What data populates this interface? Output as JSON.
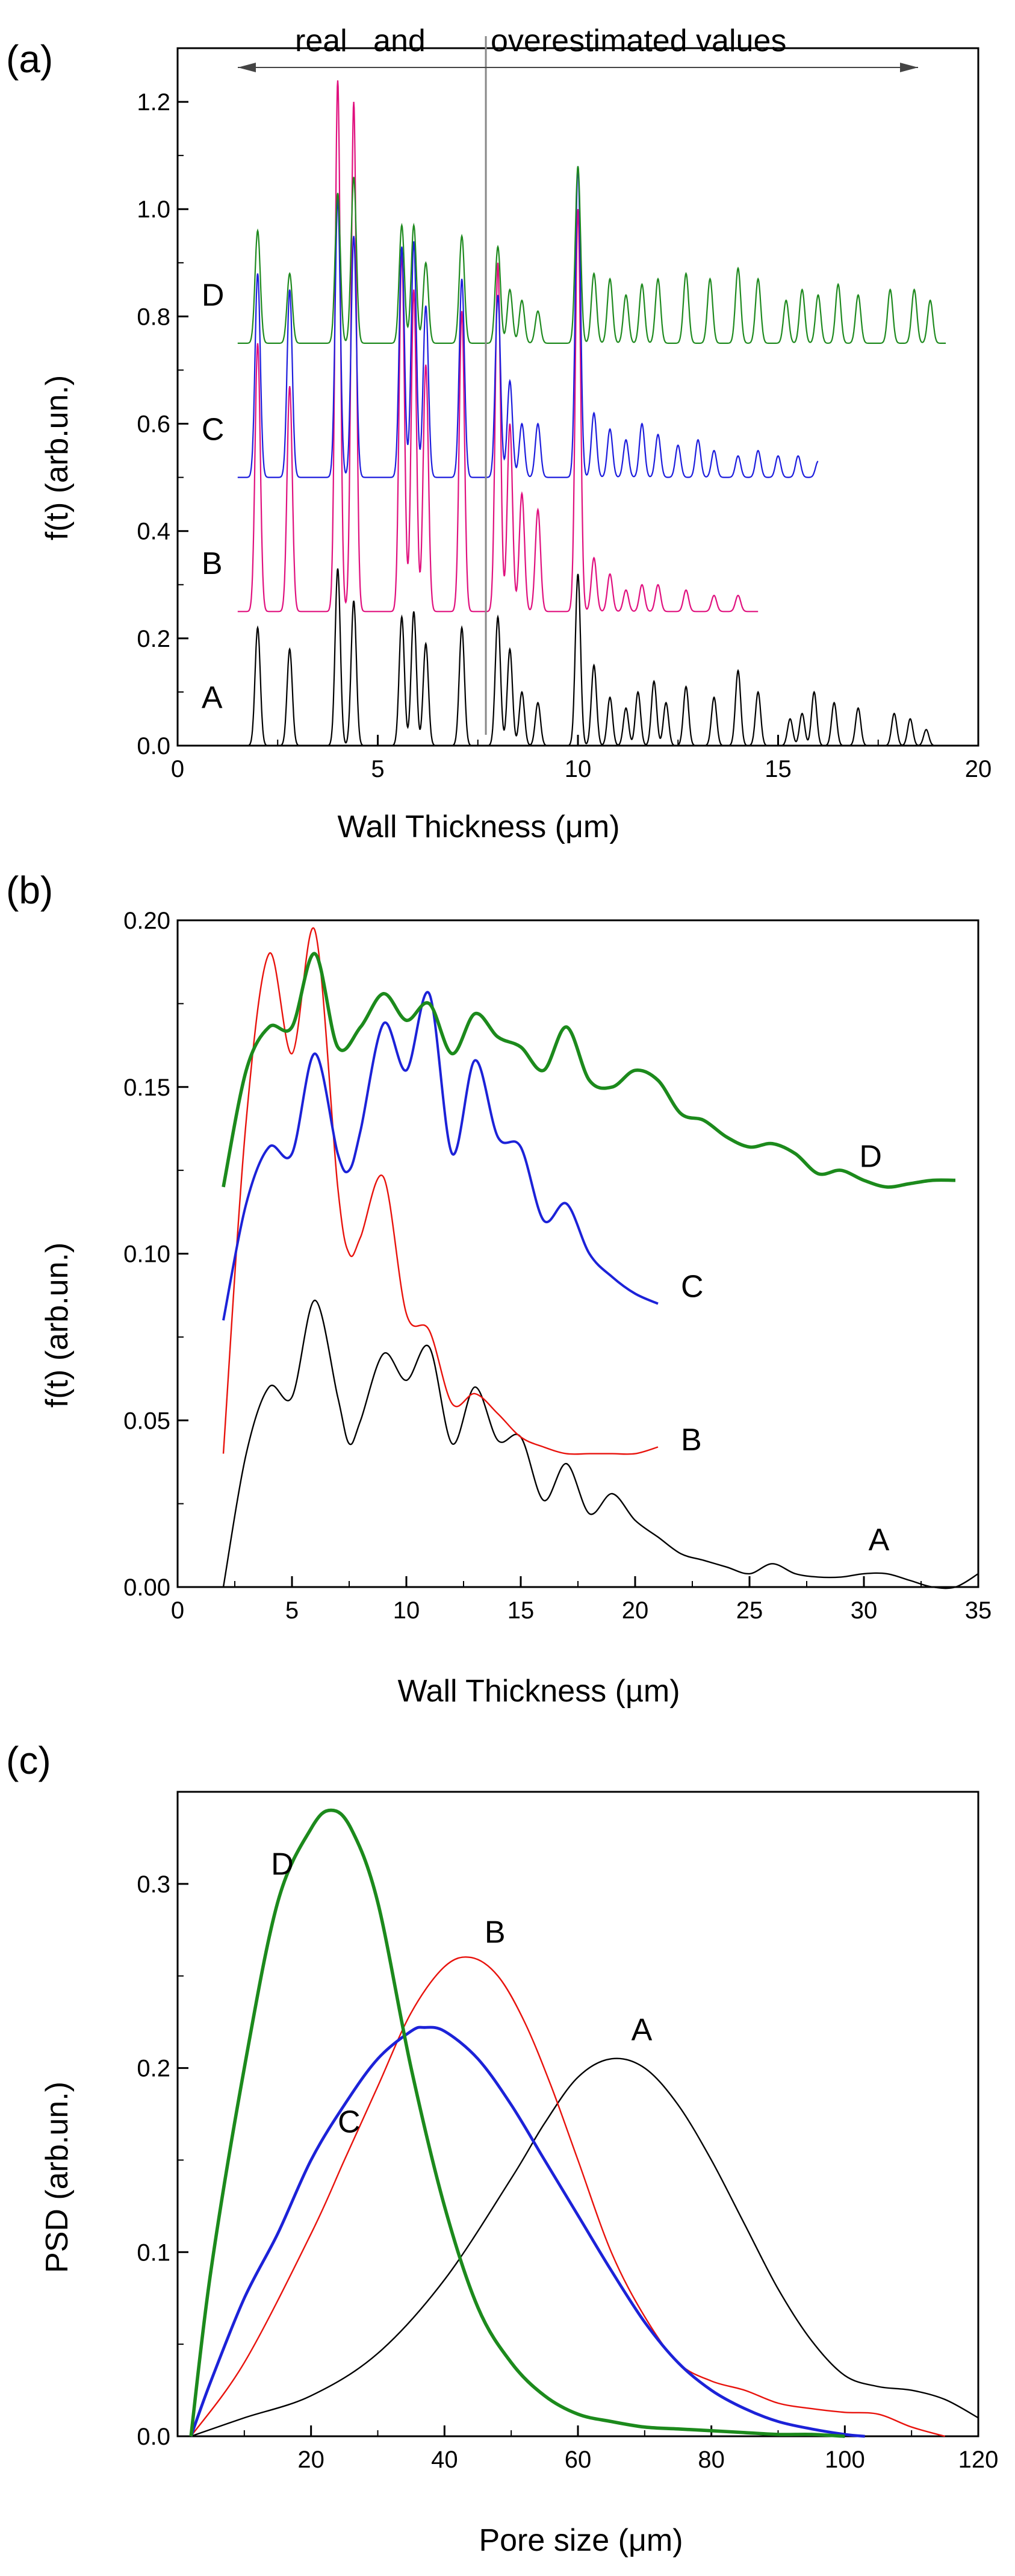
{
  "chart_data": [
    {
      "panel": "(a)",
      "type": "line",
      "xlabel": "Wall  Thickness  (μm)",
      "ylabel": "f(t)  (arb.un.)",
      "xlim": [
        0,
        20
      ],
      "ylim": [
        0,
        1.3
      ],
      "xticks": [
        "0",
        "5",
        "10",
        "15",
        "20"
      ],
      "yticks": [
        "0.0",
        "0.2",
        "0.4",
        "0.6",
        "0.8",
        "1.0",
        "1.2"
      ],
      "annotation_left": "real   and",
      "annotation_right": "overestimated values",
      "annotation_divider_x": 7.7,
      "series": [
        {
          "name": "A",
          "label": "A",
          "color": "#000000",
          "baseline": 0.0,
          "peaks": [
            [
              2.0,
              0.22
            ],
            [
              2.8,
              0.18
            ],
            [
              4.0,
              0.33
            ],
            [
              4.4,
              0.27
            ],
            [
              5.6,
              0.24
            ],
            [
              5.9,
              0.25
            ],
            [
              6.2,
              0.19
            ],
            [
              7.1,
              0.22
            ],
            [
              8.0,
              0.24
            ],
            [
              8.3,
              0.18
            ],
            [
              8.6,
              0.1
            ],
            [
              9.0,
              0.08
            ],
            [
              10.0,
              0.32
            ],
            [
              10.4,
              0.15
            ],
            [
              10.8,
              0.09
            ],
            [
              11.2,
              0.07
            ],
            [
              11.5,
              0.1
            ],
            [
              11.9,
              0.12
            ],
            [
              12.2,
              0.08
            ],
            [
              12.7,
              0.11
            ],
            [
              13.4,
              0.09
            ],
            [
              14.0,
              0.14
            ],
            [
              14.5,
              0.1
            ],
            [
              15.3,
              0.05
            ],
            [
              15.6,
              0.06
            ],
            [
              15.9,
              0.1
            ],
            [
              16.4,
              0.08
            ],
            [
              17.0,
              0.07
            ],
            [
              17.9,
              0.06
            ],
            [
              18.3,
              0.05
            ],
            [
              18.7,
              0.03
            ]
          ],
          "end_x": 19.0
        },
        {
          "name": "B",
          "label": "B",
          "color": "#e0107e",
          "baseline": 0.25,
          "peaks": [
            [
              2.0,
              0.5
            ],
            [
              2.8,
              0.42
            ],
            [
              4.0,
              0.99
            ],
            [
              4.4,
              0.95
            ],
            [
              5.6,
              0.67
            ],
            [
              5.9,
              0.6
            ],
            [
              6.2,
              0.46
            ],
            [
              7.1,
              0.56
            ],
            [
              8.0,
              0.65
            ],
            [
              8.3,
              0.35
            ],
            [
              8.6,
              0.22
            ],
            [
              9.0,
              0.19
            ],
            [
              10.0,
              0.75
            ],
            [
              10.4,
              0.1
            ],
            [
              10.8,
              0.07
            ],
            [
              11.2,
              0.04
            ],
            [
              11.6,
              0.05
            ],
            [
              12.0,
              0.05
            ],
            [
              12.7,
              0.04
            ],
            [
              13.4,
              0.03
            ],
            [
              14.0,
              0.03
            ]
          ],
          "end_x": 14.5
        },
        {
          "name": "C",
          "label": "C",
          "color": "#1d1ddd",
          "baseline": 0.5,
          "peaks": [
            [
              2.0,
              0.38
            ],
            [
              2.8,
              0.35
            ],
            [
              4.0,
              0.52
            ],
            [
              4.4,
              0.45
            ],
            [
              5.6,
              0.43
            ],
            [
              5.9,
              0.44
            ],
            [
              6.2,
              0.32
            ],
            [
              7.1,
              0.37
            ],
            [
              8.0,
              0.34
            ],
            [
              8.3,
              0.18
            ],
            [
              8.6,
              0.1
            ],
            [
              9.0,
              0.1
            ],
            [
              10.0,
              0.58
            ],
            [
              10.4,
              0.12
            ],
            [
              10.8,
              0.09
            ],
            [
              11.2,
              0.07
            ],
            [
              11.6,
              0.1
            ],
            [
              12.0,
              0.08
            ],
            [
              12.5,
              0.06
            ],
            [
              13.0,
              0.07
            ],
            [
              13.4,
              0.05
            ],
            [
              14.0,
              0.04
            ],
            [
              14.5,
              0.05
            ],
            [
              15.0,
              0.04
            ],
            [
              15.5,
              0.04
            ],
            [
              16.0,
              0.03
            ]
          ],
          "end_x": 16.0
        },
        {
          "name": "D",
          "label": "D",
          "color": "#1f8a1f",
          "baseline": 0.75,
          "peaks": [
            [
              2.0,
              0.21
            ],
            [
              2.8,
              0.13
            ],
            [
              4.0,
              0.28
            ],
            [
              4.4,
              0.31
            ],
            [
              5.6,
              0.22
            ],
            [
              5.9,
              0.22
            ],
            [
              6.2,
              0.15
            ],
            [
              7.1,
              0.2
            ],
            [
              8.0,
              0.18
            ],
            [
              8.3,
              0.1
            ],
            [
              8.6,
              0.08
            ],
            [
              9.0,
              0.06
            ],
            [
              10.0,
              0.33
            ],
            [
              10.4,
              0.13
            ],
            [
              10.8,
              0.12
            ],
            [
              11.2,
              0.09
            ],
            [
              11.6,
              0.11
            ],
            [
              12.0,
              0.12
            ],
            [
              12.7,
              0.13
            ],
            [
              13.3,
              0.12
            ],
            [
              14.0,
              0.14
            ],
            [
              14.5,
              0.12
            ],
            [
              15.2,
              0.08
            ],
            [
              15.6,
              0.1
            ],
            [
              16.0,
              0.09
            ],
            [
              16.5,
              0.11
            ],
            [
              17.0,
              0.09
            ],
            [
              17.8,
              0.1
            ],
            [
              18.4,
              0.1
            ],
            [
              18.8,
              0.08
            ]
          ],
          "end_x": 19.2
        }
      ]
    },
    {
      "panel": "(b)",
      "type": "line",
      "xlabel": "Wall  Thickness  (µm)",
      "ylabel": "f(t)  (arb.un.)",
      "xlim": [
        0,
        35
      ],
      "ylim": [
        0,
        0.2
      ],
      "xticks": [
        "0",
        "5",
        "10",
        "15",
        "20",
        "25",
        "30",
        "35"
      ],
      "yticks": [
        "0.00",
        "0.05",
        "0.10",
        "0.15",
        "0.20"
      ],
      "series": [
        {
          "name": "A",
          "label": "A",
          "color": "#000000",
          "width": 1.5,
          "x": [
            2,
            3,
            4,
            5,
            6,
            7,
            7.5,
            8,
            9,
            10,
            11,
            12,
            13,
            14,
            15,
            16,
            17,
            18,
            19,
            20,
            21,
            22,
            23,
            24,
            25,
            26,
            27,
            28,
            29,
            30,
            31,
            32,
            33,
            34,
            35
          ],
          "y": [
            0.0,
            0.04,
            0.06,
            0.057,
            0.086,
            0.057,
            0.043,
            0.05,
            0.07,
            0.062,
            0.072,
            0.043,
            0.06,
            0.044,
            0.045,
            0.026,
            0.037,
            0.022,
            0.028,
            0.02,
            0.015,
            0.01,
            0.008,
            0.006,
            0.004,
            0.007,
            0.004,
            0.003,
            0.003,
            0.004,
            0.004,
            0.002,
            0.0,
            0.0,
            0.004
          ]
        },
        {
          "name": "B",
          "label": "B",
          "color": "#e8120c",
          "width": 1.5,
          "x": [
            2,
            3,
            4,
            5,
            6,
            7,
            7.5,
            8,
            9,
            10,
            11,
            12,
            13,
            14,
            15,
            16,
            17,
            18,
            19,
            20,
            21
          ],
          "y": [
            0.04,
            0.14,
            0.19,
            0.16,
            0.197,
            0.12,
            0.1,
            0.105,
            0.123,
            0.082,
            0.077,
            0.055,
            0.058,
            0.052,
            0.045,
            0.042,
            0.04,
            0.04,
            0.04,
            0.04,
            0.042
          ]
        },
        {
          "name": "C",
          "label": "C",
          "color": "#1c22d8",
          "width": 2.5,
          "x": [
            2,
            3,
            4,
            5,
            6,
            7,
            7.5,
            8,
            9,
            10,
            11,
            12,
            13,
            14,
            15,
            16,
            17,
            18,
            19,
            20,
            21
          ],
          "y": [
            0.08,
            0.115,
            0.132,
            0.13,
            0.16,
            0.13,
            0.125,
            0.137,
            0.169,
            0.155,
            0.178,
            0.13,
            0.158,
            0.135,
            0.132,
            0.11,
            0.115,
            0.1,
            0.093,
            0.088,
            0.085
          ]
        },
        {
          "name": "D",
          "label": "D",
          "color": "#1c8a1c",
          "width": 3.5,
          "x": [
            2,
            3,
            4,
            5,
            6,
            7,
            8,
            9,
            10,
            11,
            12,
            13,
            14,
            15,
            16,
            17,
            18,
            19,
            20,
            21,
            22,
            23,
            24,
            25,
            26,
            27,
            28,
            29,
            30,
            31,
            32,
            33,
            34
          ],
          "y": [
            0.12,
            0.155,
            0.168,
            0.168,
            0.19,
            0.162,
            0.168,
            0.178,
            0.17,
            0.175,
            0.16,
            0.172,
            0.165,
            0.162,
            0.155,
            0.168,
            0.152,
            0.15,
            0.155,
            0.152,
            0.142,
            0.14,
            0.135,
            0.132,
            0.133,
            0.13,
            0.124,
            0.125,
            0.122,
            0.12,
            0.121,
            0.122,
            0.122
          ]
        }
      ]
    },
    {
      "panel": "(c)",
      "type": "line",
      "xlabel": "Pore size  (μm)",
      "ylabel": "PSD  (arb.un.)",
      "xlim": [
        0,
        120
      ],
      "ylim": [
        0,
        0.35
      ],
      "xticks": [
        "20",
        "40",
        "60",
        "80",
        "100",
        "120"
      ],
      "yticks": [
        "0.0",
        "0.1",
        "0.2",
        "0.3"
      ],
      "series": [
        {
          "name": "A",
          "label": "A",
          "color": "#000000",
          "width": 1.5,
          "x": [
            2,
            10,
            20,
            30,
            40,
            50,
            55,
            60,
            65,
            70,
            75,
            80,
            85,
            90,
            95,
            100,
            105,
            110,
            115,
            120
          ],
          "y": [
            0.0,
            0.01,
            0.022,
            0.045,
            0.085,
            0.14,
            0.17,
            0.195,
            0.205,
            0.2,
            0.18,
            0.15,
            0.115,
            0.08,
            0.052,
            0.033,
            0.027,
            0.025,
            0.02,
            0.01
          ]
        },
        {
          "name": "B",
          "label": "B",
          "color": "#e8120c",
          "width": 1.5,
          "x": [
            2,
            10,
            20,
            25,
            30,
            35,
            40,
            44,
            48,
            52,
            56,
            60,
            65,
            70,
            75,
            80,
            85,
            90,
            95,
            100,
            105,
            110,
            115
          ],
          "y": [
            0.0,
            0.04,
            0.11,
            0.15,
            0.19,
            0.23,
            0.255,
            0.26,
            0.25,
            0.225,
            0.19,
            0.15,
            0.1,
            0.065,
            0.04,
            0.03,
            0.025,
            0.018,
            0.015,
            0.013,
            0.012,
            0.005,
            0.0
          ]
        },
        {
          "name": "C",
          "label": "C",
          "color": "#1c22d8",
          "width": 3,
          "x": [
            2,
            5,
            10,
            15,
            20,
            25,
            30,
            35,
            37,
            40,
            45,
            50,
            55,
            60,
            65,
            70,
            75,
            80,
            85,
            90,
            95,
            100,
            103
          ],
          "y": [
            0.0,
            0.03,
            0.075,
            0.11,
            0.15,
            0.18,
            0.205,
            0.22,
            0.222,
            0.22,
            0.205,
            0.18,
            0.15,
            0.12,
            0.09,
            0.062,
            0.04,
            0.025,
            0.015,
            0.008,
            0.004,
            0.001,
            0.0
          ]
        },
        {
          "name": "D",
          "label": "D",
          "color": "#1c8a1c",
          "width": 3.5,
          "x": [
            2,
            5,
            10,
            15,
            20,
            23,
            26,
            30,
            35,
            40,
            45,
            50,
            55,
            60,
            65,
            70,
            75,
            80,
            85,
            90,
            95,
            100
          ],
          "y": [
            0.0,
            0.09,
            0.2,
            0.29,
            0.33,
            0.34,
            0.33,
            0.29,
            0.2,
            0.125,
            0.07,
            0.04,
            0.022,
            0.012,
            0.008,
            0.005,
            0.004,
            0.003,
            0.002,
            0.001,
            0.001,
            0.0
          ]
        }
      ]
    }
  ]
}
